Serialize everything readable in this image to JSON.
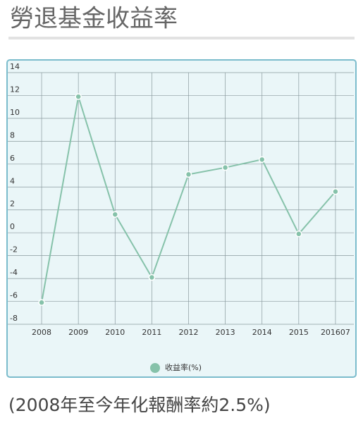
{
  "chart_data": {
    "type": "line",
    "title": "勞退基金收益率",
    "footnote": "(2008年至今年化報酬率約2.5%)",
    "categories": [
      "2008",
      "2009",
      "2010",
      "2011",
      "2012",
      "2013",
      "2014",
      "2015",
      "201607"
    ],
    "series": [
      {
        "name": "收益率(%)",
        "color": "#86c2aa",
        "values": [
          -6.1,
          11.9,
          1.6,
          -3.9,
          5.1,
          5.7,
          6.4,
          -0.1,
          3.6
        ]
      }
    ],
    "ylim": [
      -8,
      14
    ],
    "yticks": [
      -8,
      -6,
      -4,
      -2,
      0,
      2,
      4,
      6,
      8,
      10,
      12,
      14
    ],
    "grid": true,
    "legend": "bottom"
  }
}
